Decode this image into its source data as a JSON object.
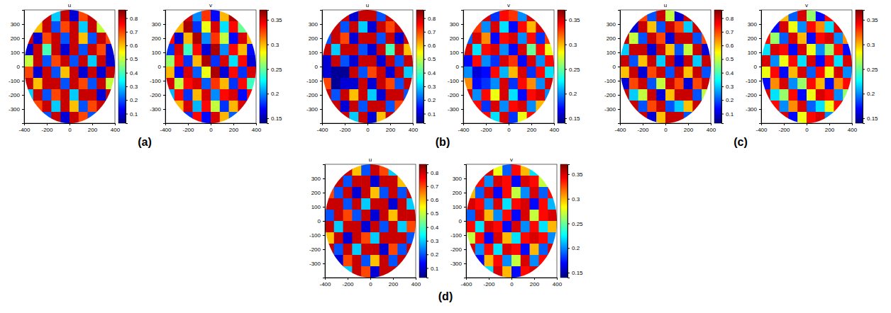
{
  "chart_data": [
    {
      "type": "heatmap",
      "title": "u",
      "xlim": [
        -400,
        400
      ],
      "ylim": [
        -400,
        400
      ],
      "xticks": [
        -400,
        -200,
        0,
        200,
        400
      ],
      "yticks": [
        -300,
        -200,
        -100,
        0,
        100,
        200,
        300
      ],
      "colorbar": {
        "range": [
          0.03,
          0.86
        ],
        "ticks": [
          0.1,
          0.2,
          0.3,
          0.4,
          0.5,
          0.6,
          0.7,
          0.8
        ]
      },
      "cells": [
        [
          null,
          null,
          0.8,
          0.3,
          0.8,
          0.1,
          0.7,
          0.8,
          null,
          null
        ],
        [
          null,
          0.6,
          0.8,
          0.2,
          0.7,
          0.8,
          0.3,
          0.8,
          0.5,
          null
        ],
        [
          0.8,
          0.1,
          0.7,
          0.8,
          0.2,
          0.8,
          0.6,
          0.2,
          0.8,
          0.7
        ],
        [
          0.1,
          0.8,
          0.4,
          0.8,
          0.1,
          0.8,
          0.2,
          0.8,
          0.7,
          0.1
        ],
        [
          0.5,
          0.8,
          0.2,
          0.7,
          0.8,
          0.2,
          0.8,
          0.3,
          0.8,
          0.1
        ],
        [
          0.7,
          0.1,
          0.8,
          0.2,
          0.6,
          0.8,
          0.1,
          0.8,
          0.1,
          0.8
        ],
        [
          0.8,
          0.6,
          0.8,
          0.8,
          0.2,
          0.8,
          0.7,
          0.2,
          0.8,
          0.5
        ],
        [
          0.3,
          0.8,
          0.2,
          0.7,
          0.8,
          0.3,
          0.8,
          0.8,
          0.1,
          0.8
        ],
        [
          null,
          0.7,
          0.8,
          0.3,
          0.8,
          0.6,
          0.2,
          0.7,
          0.8,
          null
        ],
        [
          null,
          null,
          0.2,
          0.8,
          0.1,
          0.8,
          0.7,
          0.2,
          null,
          null
        ]
      ]
    },
    {
      "type": "heatmap",
      "title": "v",
      "xlim": [
        -400,
        400
      ],
      "ylim": [
        -400,
        400
      ],
      "xticks": [
        -400,
        -200,
        0,
        200,
        400
      ],
      "yticks": [
        -300,
        -200,
        -100,
        0,
        100,
        200,
        300
      ],
      "colorbar": {
        "range": [
          0.14,
          0.37
        ],
        "ticks": [
          0.15,
          0.2,
          0.25,
          0.3,
          0.35
        ]
      },
      "cells": [
        [
          null,
          null,
          0.35,
          0.2,
          0.33,
          0.17,
          0.3,
          0.36,
          null,
          null
        ],
        [
          null,
          0.3,
          0.36,
          0.18,
          0.28,
          0.35,
          0.22,
          0.34,
          0.25,
          null
        ],
        [
          0.34,
          0.16,
          0.3,
          0.36,
          0.2,
          0.33,
          0.27,
          0.17,
          0.35,
          0.3
        ],
        [
          0.18,
          0.35,
          0.24,
          0.34,
          0.16,
          0.36,
          0.2,
          0.34,
          0.3,
          0.17
        ],
        [
          0.26,
          0.34,
          0.18,
          0.3,
          0.36,
          0.18,
          0.35,
          0.22,
          0.34,
          0.16
        ],
        [
          0.3,
          0.17,
          0.35,
          0.19,
          0.28,
          0.36,
          0.16,
          0.34,
          0.18,
          0.35
        ],
        [
          0.35,
          0.27,
          0.34,
          0.35,
          0.19,
          0.33,
          0.3,
          0.18,
          0.34,
          0.24
        ],
        [
          0.21,
          0.34,
          0.18,
          0.3,
          0.35,
          0.2,
          0.34,
          0.35,
          0.17,
          0.34
        ],
        [
          null,
          0.3,
          0.35,
          0.21,
          0.34,
          0.27,
          0.18,
          0.3,
          0.35,
          null
        ],
        [
          null,
          null,
          0.18,
          0.34,
          0.17,
          0.35,
          0.3,
          0.19,
          null,
          null
        ]
      ]
    },
    {
      "type": "heatmap",
      "title": "u",
      "xlim": [
        -400,
        400
      ],
      "ylim": [
        -400,
        400
      ],
      "xticks": [
        -400,
        -200,
        0,
        200,
        400
      ],
      "yticks": [
        -300,
        -200,
        -100,
        0,
        100,
        200,
        300
      ],
      "colorbar": {
        "range": [
          0.03,
          0.86
        ],
        "ticks": [
          0.1,
          0.2,
          0.3,
          0.4,
          0.5,
          0.6,
          0.7,
          0.8
        ]
      },
      "cells": [
        [
          null,
          null,
          0.8,
          0.1,
          0.8,
          0.8,
          0.2,
          0.8,
          null,
          null
        ],
        [
          null,
          0.8,
          0.2,
          0.8,
          0.3,
          0.1,
          0.8,
          0.7,
          0.8,
          null
        ],
        [
          0.2,
          0.8,
          0.7,
          0.1,
          0.8,
          0.8,
          0.2,
          0.8,
          0.1,
          0.8
        ],
        [
          0.8,
          0.3,
          0.8,
          0.8,
          0.2,
          0.1,
          0.8,
          0.4,
          0.8,
          0.6
        ],
        [
          0.1,
          0.8,
          0.2,
          0.1,
          0.8,
          0.8,
          0.1,
          0.8,
          0.2,
          0.8
        ],
        [
          0.1,
          0.05,
          0.05,
          0.8,
          0.2,
          0.7,
          0.8,
          0.1,
          0.8,
          0.3
        ],
        [
          0.7,
          0.05,
          0.1,
          0.1,
          0.8,
          0.1,
          0.8,
          0.7,
          0.2,
          0.8
        ],
        [
          0.8,
          0.2,
          0.8,
          0.6,
          0.8,
          0.3,
          0.1,
          0.8,
          0.8,
          0.2
        ],
        [
          null,
          0.8,
          0.1,
          0.8,
          0.2,
          0.8,
          0.8,
          0.2,
          0.7,
          null
        ],
        [
          null,
          null,
          0.8,
          0.3,
          0.8,
          0.1,
          0.6,
          0.8,
          null,
          null
        ]
      ]
    },
    {
      "type": "heatmap",
      "title": "v",
      "xlim": [
        -400,
        400
      ],
      "ylim": [
        -400,
        400
      ],
      "xticks": [
        -400,
        -200,
        0,
        200,
        400
      ],
      "yticks": [
        -300,
        -200,
        -100,
        0,
        100,
        200,
        300
      ],
      "colorbar": {
        "range": [
          0.14,
          0.37
        ],
        "ticks": [
          0.15,
          0.2,
          0.25,
          0.3,
          0.35
        ]
      },
      "cells": [
        [
          null,
          null,
          0.35,
          0.18,
          0.34,
          0.33,
          0.2,
          0.35,
          null,
          null
        ],
        [
          null,
          0.33,
          0.2,
          0.35,
          0.22,
          0.17,
          0.34,
          0.3,
          0.35,
          null
        ],
        [
          0.19,
          0.35,
          0.31,
          0.17,
          0.34,
          0.35,
          0.2,
          0.34,
          0.18,
          0.33
        ],
        [
          0.35,
          0.22,
          0.34,
          0.35,
          0.2,
          0.17,
          0.35,
          0.25,
          0.34,
          0.28
        ],
        [
          0.17,
          0.34,
          0.2,
          0.18,
          0.35,
          0.33,
          0.17,
          0.35,
          0.2,
          0.34
        ],
        [
          0.2,
          0.16,
          0.17,
          0.34,
          0.21,
          0.3,
          0.35,
          0.18,
          0.34,
          0.22
        ],
        [
          0.31,
          0.17,
          0.18,
          0.2,
          0.35,
          0.18,
          0.34,
          0.31,
          0.2,
          0.35
        ],
        [
          0.35,
          0.2,
          0.34,
          0.28,
          0.35,
          0.22,
          0.17,
          0.34,
          0.35,
          0.2
        ],
        [
          null,
          0.34,
          0.18,
          0.35,
          0.2,
          0.34,
          0.35,
          0.2,
          0.3,
          null
        ],
        [
          null,
          null,
          0.34,
          0.22,
          0.35,
          0.18,
          0.28,
          0.34,
          null,
          null
        ]
      ]
    },
    {
      "type": "heatmap",
      "title": "u",
      "xlim": [
        -400,
        400
      ],
      "ylim": [
        -400,
        400
      ],
      "xticks": [
        -400,
        -200,
        0,
        200,
        400
      ],
      "yticks": [
        -300,
        -200,
        -100,
        0,
        100,
        200,
        300
      ],
      "colorbar": {
        "range": [
          0.03,
          0.86
        ],
        "ticks": [
          0.1,
          0.2,
          0.3,
          0.4,
          0.5,
          0.6,
          0.7,
          0.8
        ]
      },
      "cells": [
        [
          null,
          null,
          0.7,
          0.2,
          0.8,
          0.5,
          0.1,
          0.8,
          null,
          null
        ],
        [
          null,
          0.1,
          0.8,
          0.6,
          0.2,
          0.8,
          0.7,
          0.3,
          0.8,
          null
        ],
        [
          0.8,
          0.5,
          0.2,
          0.8,
          0.7,
          0.1,
          0.8,
          0.8,
          0.2,
          0.7
        ],
        [
          0.3,
          0.8,
          0.8,
          0.1,
          0.8,
          0.6,
          0.2,
          0.5,
          0.8,
          0.1
        ],
        [
          0.8,
          0.2,
          0.6,
          0.8,
          0.3,
          0.8,
          0.1,
          0.8,
          0.3,
          0.8
        ],
        [
          0.6,
          0.8,
          0.1,
          0.7,
          0.8,
          0.2,
          0.8,
          0.6,
          0.8,
          0.2
        ],
        [
          0.1,
          0.7,
          0.8,
          0.2,
          0.5,
          0.8,
          0.7,
          0.1,
          0.7,
          0.8
        ],
        [
          0.8,
          0.3,
          0.5,
          0.8,
          0.1,
          0.6,
          0.8,
          0.8,
          0.2,
          0.5
        ],
        [
          null,
          0.8,
          0.2,
          0.7,
          0.8,
          0.2,
          0.3,
          0.6,
          0.8,
          null
        ],
        [
          null,
          null,
          0.8,
          0.1,
          0.6,
          0.8,
          0.8,
          0.2,
          null,
          null
        ]
      ]
    },
    {
      "type": "heatmap",
      "title": "v",
      "xlim": [
        -400,
        400
      ],
      "ylim": [
        -400,
        400
      ],
      "xticks": [
        -400,
        -200,
        0,
        200,
        400
      ],
      "yticks": [
        -300,
        -200,
        -100,
        0,
        100,
        200,
        300
      ],
      "colorbar": {
        "range": [
          0.14,
          0.37
        ],
        "ticks": [
          0.15,
          0.2,
          0.25,
          0.3,
          0.35
        ]
      },
      "cells": [
        [
          null,
          null,
          0.3,
          0.19,
          0.35,
          0.26,
          0.17,
          0.34,
          null,
          null
        ],
        [
          null,
          0.17,
          0.35,
          0.28,
          0.2,
          0.34,
          0.31,
          0.22,
          0.35,
          null
        ],
        [
          0.34,
          0.26,
          0.19,
          0.35,
          0.3,
          0.17,
          0.34,
          0.35,
          0.2,
          0.31
        ],
        [
          0.22,
          0.35,
          0.34,
          0.17,
          0.35,
          0.28,
          0.2,
          0.26,
          0.34,
          0.17
        ],
        [
          0.35,
          0.2,
          0.28,
          0.34,
          0.22,
          0.35,
          0.17,
          0.34,
          0.22,
          0.35
        ],
        [
          0.28,
          0.34,
          0.17,
          0.3,
          0.35,
          0.19,
          0.34,
          0.28,
          0.35,
          0.2
        ],
        [
          0.17,
          0.31,
          0.35,
          0.2,
          0.26,
          0.34,
          0.3,
          0.17,
          0.31,
          0.34
        ],
        [
          0.35,
          0.22,
          0.26,
          0.34,
          0.17,
          0.28,
          0.35,
          0.34,
          0.2,
          0.26
        ],
        [
          null,
          0.34,
          0.2,
          0.31,
          0.35,
          0.19,
          0.22,
          0.28,
          0.34,
          null
        ],
        [
          null,
          null,
          0.35,
          0.17,
          0.28,
          0.34,
          0.35,
          0.2,
          null,
          null
        ]
      ]
    },
    {
      "type": "heatmap",
      "title": "u",
      "xlim": [
        -400,
        400
      ],
      "ylim": [
        -400,
        400
      ],
      "xticks": [
        -400,
        -200,
        0,
        200,
        400
      ],
      "yticks": [
        -300,
        -200,
        -100,
        0,
        100,
        200,
        300
      ],
      "colorbar": {
        "range": [
          0.03,
          0.86
        ],
        "ticks": [
          0.1,
          0.2,
          0.3,
          0.4,
          0.5,
          0.6,
          0.7,
          0.8
        ]
      },
      "cells": [
        [
          null,
          null,
          0.8,
          0.6,
          0.2,
          0.8,
          0.7,
          0.3,
          null,
          null
        ],
        [
          null,
          0.8,
          0.2,
          0.8,
          0.8,
          0.1,
          0.8,
          0.8,
          0.6,
          null
        ],
        [
          0.7,
          0.2,
          0.8,
          0.1,
          0.8,
          0.6,
          0.2,
          0.8,
          0.2,
          0.8
        ],
        [
          0.8,
          0.8,
          0.2,
          0.8,
          0.3,
          0.8,
          0.8,
          0.1,
          0.8,
          0.3
        ],
        [
          0.2,
          0.8,
          0.7,
          0.2,
          0.8,
          0.1,
          0.8,
          0.6,
          0.8,
          0.8
        ],
        [
          0.8,
          0.3,
          0.8,
          0.8,
          0.1,
          0.8,
          0.2,
          0.8,
          0.3,
          0.7
        ],
        [
          0.6,
          0.8,
          0.1,
          0.8,
          0.7,
          0.3,
          0.8,
          0.8,
          0.8,
          0.2
        ],
        [
          0.8,
          0.2,
          0.8,
          0.3,
          0.8,
          0.8,
          0.1,
          0.7,
          0.2,
          0.8
        ],
        [
          null,
          0.1,
          0.7,
          0.8,
          0.2,
          0.6,
          0.8,
          0.2,
          0.8,
          null
        ],
        [
          null,
          null,
          0.3,
          0.8,
          0.7,
          0.1,
          0.8,
          0.8,
          null,
          null
        ]
      ]
    },
    {
      "type": "heatmap",
      "title": "v",
      "xlim": [
        -400,
        400
      ],
      "ylim": [
        -400,
        400
      ],
      "xticks": [
        -400,
        -200,
        0,
        200,
        400
      ],
      "yticks": [
        -300,
        -200,
        -100,
        0,
        100,
        200,
        300
      ],
      "colorbar": {
        "range": [
          0.14,
          0.37
        ],
        "ticks": [
          0.15,
          0.2,
          0.25,
          0.3,
          0.35
        ]
      },
      "cells": [
        [
          null,
          null,
          0.35,
          0.28,
          0.19,
          0.34,
          0.3,
          0.22,
          null,
          null
        ],
        [
          null,
          0.34,
          0.2,
          0.35,
          0.34,
          0.17,
          0.35,
          0.34,
          0.27,
          null
        ],
        [
          0.3,
          0.19,
          0.35,
          0.17,
          0.34,
          0.27,
          0.2,
          0.35,
          0.19,
          0.34
        ],
        [
          0.35,
          0.34,
          0.2,
          0.35,
          0.22,
          0.34,
          0.35,
          0.17,
          0.34,
          0.21
        ],
        [
          0.19,
          0.35,
          0.3,
          0.2,
          0.34,
          0.17,
          0.35,
          0.27,
          0.34,
          0.35
        ],
        [
          0.34,
          0.22,
          0.35,
          0.34,
          0.17,
          0.35,
          0.2,
          0.34,
          0.22,
          0.3
        ],
        [
          0.27,
          0.34,
          0.17,
          0.35,
          0.3,
          0.22,
          0.34,
          0.35,
          0.34,
          0.2
        ],
        [
          0.35,
          0.2,
          0.34,
          0.22,
          0.35,
          0.34,
          0.17,
          0.3,
          0.19,
          0.35
        ],
        [
          null,
          0.17,
          0.3,
          0.34,
          0.2,
          0.27,
          0.35,
          0.2,
          0.34,
          null
        ],
        [
          null,
          null,
          0.22,
          0.35,
          0.3,
          0.17,
          0.34,
          0.35,
          null,
          null
        ]
      ]
    }
  ],
  "panel_labels": [
    "(a)",
    "(b)",
    "(c)",
    "(d)"
  ]
}
